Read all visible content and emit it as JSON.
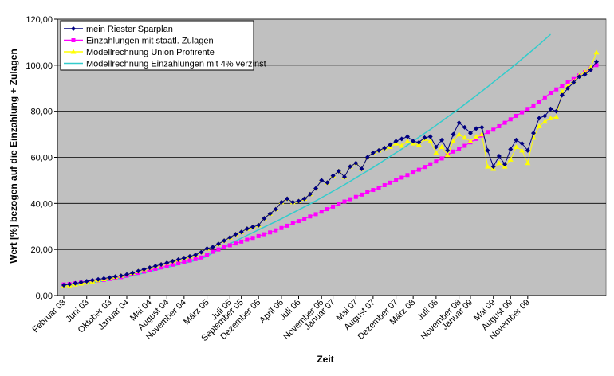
{
  "chart_data": {
    "type": "line",
    "xlabel": "Zeit",
    "ylabel": "Wert [%] bezogen auf die Einzahlung + Zulagen",
    "ylim": [
      0,
      120
    ],
    "yticks": [
      "0,00",
      "20,00",
      "40,00",
      "60,00",
      "80,00",
      "100,00",
      "120,00"
    ],
    "ytick_values": [
      0,
      20,
      40,
      60,
      80,
      100,
      120
    ],
    "xticks": [
      {
        "label": "Februar 03",
        "i": 0
      },
      {
        "label": "Juni 03",
        "i": 4
      },
      {
        "label": "Oktober 03",
        "i": 8
      },
      {
        "label": "Januar 04",
        "i": 11
      },
      {
        "label": "Mai 04",
        "i": 15
      },
      {
        "label": "August 04",
        "i": 18
      },
      {
        "label": "November 04",
        "i": 21
      },
      {
        "label": "März 05",
        "i": 25
      },
      {
        "label": "Juli 05",
        "i": 29
      },
      {
        "label": "September 05",
        "i": 31
      },
      {
        "label": "Dezember 05",
        "i": 34
      },
      {
        "label": "April 06",
        "i": 38
      },
      {
        "label": "Juli 06",
        "i": 41
      },
      {
        "label": "November 06",
        "i": 45
      },
      {
        "label": "Januar 07",
        "i": 47
      },
      {
        "label": "Mai 07",
        "i": 51
      },
      {
        "label": "August 07",
        "i": 54
      },
      {
        "label": "Dezember 07",
        "i": 58
      },
      {
        "label": "März 08",
        "i": 61
      },
      {
        "label": "Juli 08",
        "i": 65
      },
      {
        "label": "November 08",
        "i": 69
      },
      {
        "label": "Januar 09",
        "i": 71
      },
      {
        "label": "Mai 09",
        "i": 75
      },
      {
        "label": "August 09",
        "i": 78
      },
      {
        "label": "November 09",
        "i": 81
      }
    ],
    "grid": true,
    "legend_position": "top-left",
    "background_color": "#c0c0c0",
    "series": [
      {
        "name": "mein Riester Sparplan",
        "color": "#000080",
        "marker": "diamond",
        "values": [
          4.5,
          4.9,
          5.3,
          5.7,
          6.2,
          6.6,
          7.0,
          7.4,
          7.8,
          8.2,
          8.6,
          9.1,
          9.8,
          10.6,
          11.4,
          12.1,
          12.8,
          13.5,
          14.2,
          14.9,
          15.6,
          16.3,
          17.0,
          17.7,
          18.8,
          20.4,
          21.0,
          22.4,
          23.8,
          25.2,
          26.6,
          27.6,
          29.0,
          29.8,
          30.5,
          33.5,
          35.5,
          37.5,
          40.5,
          42.0,
          40.5,
          41.0,
          42.0,
          44.0,
          46.5,
          50.0,
          49.0,
          52.0,
          54.0,
          51.5,
          56.0,
          57.5,
          55.0,
          60.0,
          62.0,
          63.0,
          64.0,
          65.5,
          67.0,
          68.0,
          69.0,
          67.0,
          66.5,
          68.5,
          69.0,
          64.5,
          67.5,
          63.0,
          70.0,
          75.0,
          73.0,
          70.5,
          72.5,
          73.0,
          63.0,
          56.0,
          60.5,
          57.0,
          63.5,
          67.5,
          66.0,
          63.0,
          70.5,
          77.0,
          78.0,
          81.0,
          80.0,
          87.0,
          90.0,
          92.5,
          95.0,
          96.0,
          98.0,
          101.5
        ]
      },
      {
        "name": "Einzahlungen mit staatl. Zulagen",
        "color": "#ff00ff",
        "marker": "square",
        "values": [
          4.8,
          5.0,
          5.3,
          5.6,
          5.9,
          6.2,
          6.5,
          6.8,
          7.2,
          7.6,
          8.0,
          8.6,
          9.2,
          9.8,
          10.4,
          11.0,
          11.6,
          12.2,
          12.8,
          13.4,
          14.0,
          14.6,
          15.2,
          15.8,
          16.5,
          17.8,
          19.0,
          20.0,
          21.0,
          21.8,
          22.6,
          23.4,
          24.2,
          25.0,
          25.8,
          26.6,
          27.4,
          28.3,
          29.3,
          30.3,
          31.3,
          32.3,
          33.3,
          34.3,
          35.3,
          36.4,
          37.5,
          38.6,
          39.7,
          40.8,
          41.8,
          42.8,
          43.8,
          44.8,
          45.8,
          46.8,
          47.9,
          49.0,
          50.1,
          51.2,
          52.3,
          53.4,
          54.6,
          55.8,
          57.0,
          58.2,
          59.5,
          61.0,
          62.5,
          63.5,
          65.0,
          66.5,
          68.0,
          69.5,
          71.0,
          72.0,
          73.5,
          75.0,
          76.5,
          78.0,
          79.5,
          81.0,
          82.5,
          84.0,
          86.0,
          88.0,
          89.5,
          91.0,
          92.5,
          94.0,
          95.5,
          97.0,
          98.5,
          100.0
        ]
      },
      {
        "name": "Modellrechnung Union Profirente",
        "color": "#ffff00",
        "marker": "triangle",
        "values": [
          4.0,
          4.4,
          4.8,
          5.2,
          5.6,
          6.1,
          6.6,
          7.1,
          7.6,
          8.1,
          8.6,
          9.1,
          9.8,
          10.6,
          11.4,
          12.1,
          12.8,
          13.5,
          14.2,
          14.9,
          15.6,
          16.3,
          17.0,
          17.7,
          18.8,
          20.4,
          21.0,
          22.4,
          23.8,
          25.2,
          26.6,
          27.6,
          29.0,
          29.8,
          30.5,
          33.5,
          35.5,
          37.5,
          40.5,
          42.0,
          40.5,
          41.0,
          42.0,
          44.0,
          46.5,
          50.0,
          49.0,
          52.0,
          54.0,
          51.5,
          56.0,
          57.5,
          55.0,
          60.0,
          62.0,
          63.0,
          64.0,
          64.5,
          66.0,
          65.0,
          67.0,
          66.0,
          65.5,
          68.0,
          67.0,
          62.0,
          64.5,
          61.0,
          67.0,
          70.0,
          68.5,
          67.0,
          69.0,
          70.0,
          56.0,
          55.0,
          57.5,
          56.0,
          59.0,
          64.5,
          63.0,
          57.5,
          68.5,
          73.5,
          75.5,
          77.0,
          77.5,
          88.5,
          91.0,
          93.0,
          95.5,
          97.0,
          99.0,
          105.5
        ]
      },
      {
        "name": "Modellrechnung Einzahlungen mit 4% verzinst",
        "color": "#33cccc",
        "marker": "none",
        "values": [
          4.2,
          4.4,
          4.7,
          5.0,
          5.3,
          5.6,
          5.9,
          6.3,
          6.7,
          7.1,
          7.5,
          8.0,
          8.6,
          9.2,
          9.8,
          10.4,
          11.0,
          11.6,
          12.2,
          12.8,
          13.4,
          14.0,
          14.6,
          15.3,
          16.0,
          17.0,
          18.5,
          20.0,
          21.3,
          22.5,
          23.7,
          24.9,
          26.1,
          27.3,
          28.5,
          29.7,
          30.9,
          32.1,
          33.3,
          34.6,
          35.9,
          37.2,
          38.5,
          39.8,
          41.1,
          42.5,
          43.9,
          45.3,
          46.7,
          48.1,
          49.6,
          51.1,
          52.6,
          54.1,
          55.6,
          57.2,
          58.8,
          60.4,
          62.0,
          63.6,
          65.3,
          67.0,
          68.7,
          70.4,
          72.1,
          73.9,
          75.7,
          77.5,
          79.3,
          81.1,
          83.0,
          84.9,
          86.8,
          88.7,
          90.6,
          92.6,
          94.6,
          96.6,
          98.6,
          100.6,
          102.7,
          104.8,
          106.9,
          109.0,
          111.2,
          113.4
        ]
      }
    ]
  }
}
